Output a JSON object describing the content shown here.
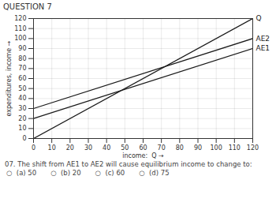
{
  "chart_data": {
    "type": "line",
    "title": "QUESTION 7",
    "xlabel": "income:  Q",
    "ylabel": "expenditures, income",
    "x": [
      0,
      120
    ],
    "series": [
      {
        "name": "Q",
        "color": "#1a1a1a",
        "values": [
          0,
          120
        ]
      },
      {
        "name": "AE1",
        "color": "#1a1a1a",
        "values": [
          20,
          90
        ]
      },
      {
        "name": "AE2",
        "color": "#1a1a1a",
        "values": [
          30,
          100
        ]
      }
    ],
    "xlim": [
      0,
      120
    ],
    "ylim": [
      0,
      120
    ],
    "xticks": [
      0,
      10,
      20,
      30,
      40,
      50,
      60,
      70,
      80,
      90,
      100,
      110,
      120
    ],
    "yticks": [
      0,
      10,
      20,
      30,
      40,
      50,
      60,
      70,
      80,
      90,
      100,
      110,
      120
    ],
    "grid": true,
    "annotations": [
      "07. The shift from AE1 to AE2 will cause equilibrium income to change to:",
      "○  (a) 50",
      "○  (b) 20",
      "○  (c) 60",
      "○  (d) 75"
    ]
  }
}
